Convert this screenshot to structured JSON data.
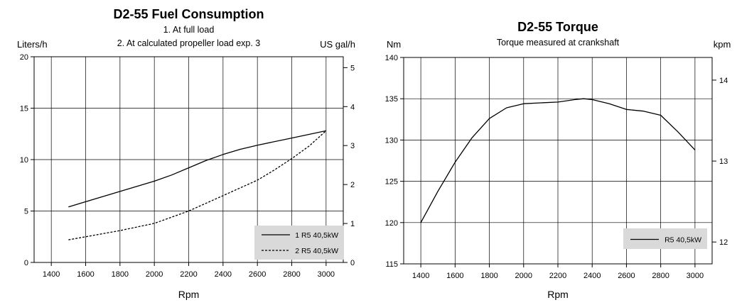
{
  "chart_data": [
    {
      "type": "line",
      "title": "D2-55 Fuel Consumption",
      "subtitle_lines": [
        "1. At full load",
        "2. At calculated propeller load exp. 3"
      ],
      "xlabel": "Rpm",
      "ylabel": "Liters/h",
      "y2label": "US gal/h",
      "xlim": [
        1300,
        3100
      ],
      "ylim": [
        0,
        20
      ],
      "y2lim": [
        0,
        5.28
      ],
      "x_ticks": [
        1400,
        1600,
        1800,
        2000,
        2200,
        2400,
        2600,
        2800,
        3000
      ],
      "y_ticks": [
        0,
        5,
        10,
        15,
        20
      ],
      "y2_ticks": [
        0,
        1,
        2,
        3,
        4,
        5
      ],
      "grid": true,
      "legend_position": "bottom-right",
      "series": [
        {
          "name": "1 R5 40,5kW",
          "style": "solid",
          "x": [
            1500,
            1600,
            1800,
            2000,
            2100,
            2200,
            2300,
            2400,
            2500,
            2600,
            2800,
            3000
          ],
          "y": [
            5.4,
            5.9,
            6.9,
            7.9,
            8.5,
            9.2,
            9.9,
            10.5,
            11.0,
            11.4,
            12.1,
            12.8
          ]
        },
        {
          "name": "2 R5 40,5kW",
          "style": "dashed",
          "x": [
            1500,
            1600,
            1800,
            2000,
            2200,
            2400,
            2600,
            2700,
            2800,
            2900,
            3000
          ],
          "y": [
            2.2,
            2.5,
            3.1,
            3.8,
            5.0,
            6.5,
            8.0,
            9.0,
            10.1,
            11.3,
            12.8
          ]
        }
      ]
    },
    {
      "type": "line",
      "title": "D2-55 Torque",
      "subtitle_lines": [
        "Torque measured at crankshaft"
      ],
      "xlabel": "Rpm",
      "ylabel": "Nm",
      "y2label": "kpm",
      "xlim": [
        1300,
        3100
      ],
      "ylim": [
        115,
        140
      ],
      "y2lim": [
        11.73,
        14.28
      ],
      "x_ticks": [
        1400,
        1600,
        1800,
        2000,
        2200,
        2400,
        2600,
        2800,
        3000
      ],
      "y_ticks": [
        115,
        120,
        125,
        130,
        135,
        140
      ],
      "y2_ticks": [
        12,
        13,
        14
      ],
      "grid": true,
      "legend_position": "bottom-right",
      "series": [
        {
          "name": "R5 40,5kW",
          "style": "solid",
          "x": [
            1400,
            1500,
            1600,
            1700,
            1800,
            1900,
            2000,
            2100,
            2200,
            2300,
            2350,
            2400,
            2500,
            2600,
            2700,
            2800,
            2900,
            3000
          ],
          "y": [
            120.0,
            123.8,
            127.3,
            130.3,
            132.6,
            133.9,
            134.4,
            134.5,
            134.6,
            134.9,
            135.0,
            134.9,
            134.4,
            133.7,
            133.5,
            133.0,
            131.0,
            128.8
          ]
        }
      ]
    }
  ]
}
